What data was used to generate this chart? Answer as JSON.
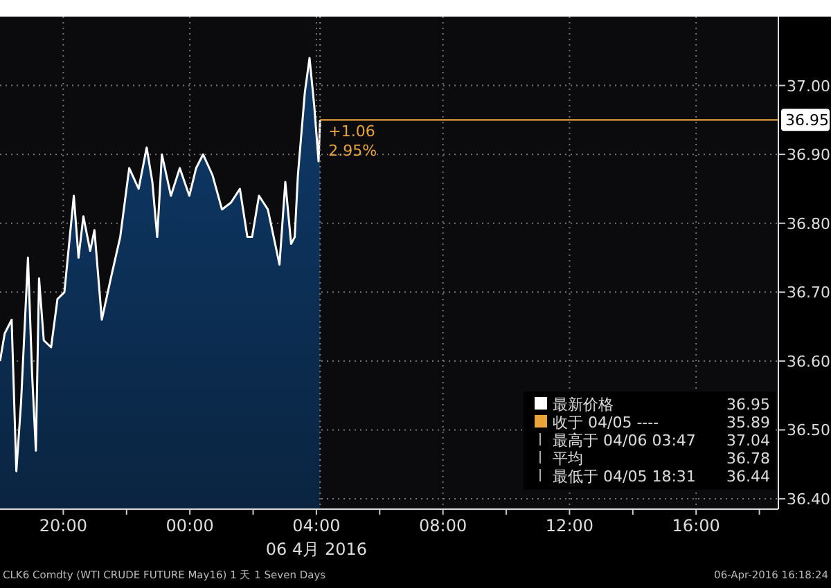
{
  "chart_data": {
    "type": "area",
    "xlabel": "06 4月 2016",
    "x": [
      "2016-04-05T18:00",
      "2016-04-05T18:09",
      "2016-04-05T18:22",
      "2016-04-05T18:31",
      "2016-04-05T18:40",
      "2016-04-05T18:53",
      "2016-04-05T19:01",
      "2016-04-05T19:08",
      "2016-04-05T19:14",
      "2016-04-05T19:23",
      "2016-04-05T19:37",
      "2016-04-05T19:49",
      "2016-04-05T20:02",
      "2016-04-05T20:20",
      "2016-04-05T20:29",
      "2016-04-05T20:38",
      "2016-04-05T20:51",
      "2016-04-05T20:59",
      "2016-04-05T21:13",
      "2016-04-05T21:30",
      "2016-04-05T21:48",
      "2016-04-05T22:05",
      "2016-04-05T22:23",
      "2016-04-05T22:38",
      "2016-04-05T22:49",
      "2016-04-05T22:58",
      "2016-04-05T23:07",
      "2016-04-05T23:24",
      "2016-04-05T23:41",
      "2016-04-05T23:59",
      "2016-04-06T00:12",
      "2016-04-06T00:25",
      "2016-04-06T00:43",
      "2016-04-06T01:01",
      "2016-04-06T01:18",
      "2016-04-06T01:35",
      "2016-04-06T01:49",
      "2016-04-06T01:58",
      "2016-04-06T02:11",
      "2016-04-06T02:28",
      "2016-04-06T02:50",
      "2016-04-06T03:01",
      "2016-04-06T03:12",
      "2016-04-06T03:19",
      "2016-04-06T03:25",
      "2016-04-06T03:38",
      "2016-04-06T03:47",
      "2016-04-06T03:56",
      "2016-04-06T04:04",
      "2016-04-06T04:07"
    ],
    "series": [
      {
        "name": "最新价格",
        "color": "#ffffff",
        "values": [
          36.6,
          36.64,
          36.66,
          36.44,
          36.54,
          36.75,
          36.58,
          36.47,
          36.72,
          36.63,
          36.62,
          36.69,
          36.7,
          36.84,
          36.75,
          36.81,
          36.76,
          36.79,
          36.66,
          36.72,
          36.78,
          36.88,
          36.85,
          36.91,
          36.86,
          36.78,
          36.9,
          36.84,
          36.88,
          36.84,
          36.88,
          36.9,
          36.87,
          36.82,
          36.83,
          36.85,
          36.78,
          36.78,
          36.84,
          36.82,
          36.74,
          36.86,
          36.77,
          36.78,
          36.87,
          36.99,
          37.04,
          36.97,
          36.89,
          36.95
        ]
      }
    ],
    "xlim": [
      "2016-04-05T18:00",
      "2016-04-06T18:36"
    ],
    "ylim": [
      36.385,
      37.1
    ],
    "xticks": [
      {
        "value": "2016-04-05T20:00",
        "label": "20:00"
      },
      {
        "value": "2016-04-05T22:00",
        "label": null
      },
      {
        "value": "2016-04-06T00:00",
        "label": "00:00"
      },
      {
        "value": "2016-04-06T02:00",
        "label": null
      },
      {
        "value": "2016-04-06T04:00",
        "label": "04:00"
      },
      {
        "value": "2016-04-06T06:00",
        "label": null
      },
      {
        "value": "2016-04-06T08:00",
        "label": "08:00"
      },
      {
        "value": "2016-04-06T10:00",
        "label": null
      },
      {
        "value": "2016-04-06T12:00",
        "label": "12:00"
      },
      {
        "value": "2016-04-06T14:00",
        "label": null
      },
      {
        "value": "2016-04-06T16:00",
        "label": "16:00"
      },
      {
        "value": "2016-04-06T18:00",
        "label": null
      }
    ],
    "yticks": [
      {
        "value": 36.4,
        "label": "36.40"
      },
      {
        "value": 36.5,
        "label": "36.50"
      },
      {
        "value": 36.6,
        "label": "36.60"
      },
      {
        "value": 36.7,
        "label": "36.70"
      },
      {
        "value": 36.8,
        "label": "36.80"
      },
      {
        "value": 36.9,
        "label": "36.90"
      },
      {
        "value": 37.0,
        "label": "37.00"
      }
    ],
    "ref_lines": [
      {
        "axis": "y",
        "value": 36.95,
        "label": "36.95",
        "color": "#e8a33a"
      },
      {
        "axis": "x",
        "value": "2016-04-06T04:07",
        "color": "#888888",
        "line_style": "dotted"
      }
    ],
    "annotations": [
      {
        "text": "+1.06",
        "x": "2016-04-06T04:07",
        "y": 36.95
      },
      {
        "text": "2.95%",
        "x": "2016-04-06T04:07",
        "y": 36.95
      },
      "36.95",
      "收于 04/05 ----",
      "35.89",
      "最高于 04/06 03:47",
      "37.04",
      "平均",
      "36.78",
      "最低于 04/05 18:31",
      "36.44",
      "CLK6 Comdty (WTI CRUDE FUTURE May16) 1 天 1 Seven Days",
      "06-Apr-2016 16:18:24"
    ],
    "grid": true,
    "legend": "bottom right"
  }
}
